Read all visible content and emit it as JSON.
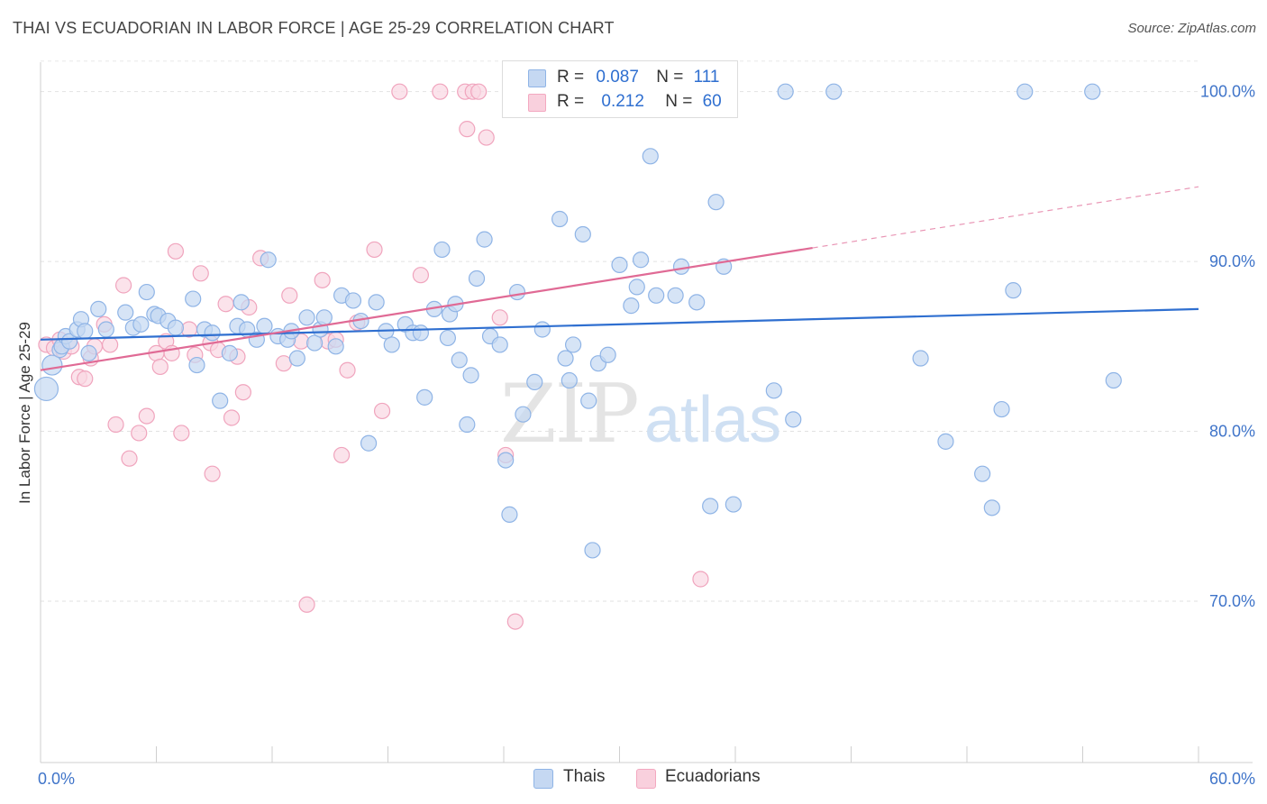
{
  "header": {
    "title": "THAI VS ECUADORIAN IN LABOR FORCE | AGE 25-29 CORRELATION CHART",
    "source": "Source: ZipAtlas.com"
  },
  "watermark": {
    "zip": "ZIP",
    "atlas": "atlas"
  },
  "legend": {
    "thais": {
      "r_label": "R =",
      "r_value": "0.087",
      "n_label": "N =",
      "n_value": "111"
    },
    "ecuadorians": {
      "r_label": "R =",
      "r_value": "0.212",
      "n_label": "N =",
      "n_value": "60"
    }
  },
  "bottom_legend": {
    "thais": "Thais",
    "ecuadorians": "Ecuadorians"
  },
  "chart_data": {
    "type": "scatter",
    "title": "THAI VS ECUADORIAN IN LABOR FORCE | AGE 25-29 CORRELATION CHART",
    "xlabel": "",
    "ylabel": "In Labor Force | Age 25-29",
    "xlim": [
      0,
      60
    ],
    "ylim": [
      60.5,
      102
    ],
    "x_tick_labels": [
      "0.0%",
      "60.0%"
    ],
    "y_ticks": [
      70,
      80,
      90,
      100
    ],
    "y_tick_labels": [
      "70.0%",
      "80.0%",
      "90.0%",
      "100.0%"
    ],
    "grid": true,
    "legend_position": "top-center",
    "colors": {
      "thais": "#8fb4e6",
      "thais_line": "#2f6fd0",
      "ecuadorians": "#f3a8c0",
      "ecuadorians_line": "#e06a95",
      "tick_label": "#3f74c9"
    },
    "series": [
      {
        "name": "Thais",
        "trend": {
          "x": [
            0,
            60
          ],
          "y": [
            85.4,
            87.2
          ]
        },
        "points": [
          [
            0.3,
            82.5
          ],
          [
            0.6,
            83.9
          ],
          [
            1.0,
            84.8
          ],
          [
            1.1,
            85.0
          ],
          [
            1.3,
            85.6
          ],
          [
            1.5,
            85.3
          ],
          [
            1.9,
            86.0
          ],
          [
            2.1,
            86.6
          ],
          [
            2.3,
            85.9
          ],
          [
            2.5,
            84.6
          ],
          [
            3.0,
            87.2
          ],
          [
            3.4,
            86.0
          ],
          [
            4.4,
            87.0
          ],
          [
            4.8,
            86.1
          ],
          [
            5.2,
            86.3
          ],
          [
            5.5,
            88.2
          ],
          [
            5.9,
            86.9
          ],
          [
            6.1,
            86.8
          ],
          [
            6.6,
            86.5
          ],
          [
            7.0,
            86.1
          ],
          [
            7.9,
            87.8
          ],
          [
            8.1,
            83.9
          ],
          [
            8.5,
            86.0
          ],
          [
            8.9,
            85.8
          ],
          [
            9.3,
            81.8
          ],
          [
            9.8,
            84.6
          ],
          [
            10.2,
            86.2
          ],
          [
            10.4,
            87.6
          ],
          [
            10.7,
            86.0
          ],
          [
            11.2,
            85.4
          ],
          [
            11.6,
            86.2
          ],
          [
            11.8,
            90.1
          ],
          [
            12.3,
            85.6
          ],
          [
            12.8,
            85.4
          ],
          [
            13.0,
            85.9
          ],
          [
            13.3,
            84.3
          ],
          [
            13.8,
            86.7
          ],
          [
            14.2,
            85.2
          ],
          [
            14.5,
            86.0
          ],
          [
            14.7,
            86.7
          ],
          [
            15.3,
            85.0
          ],
          [
            15.6,
            88.0
          ],
          [
            16.2,
            87.7
          ],
          [
            16.6,
            86.5
          ],
          [
            17.0,
            79.3
          ],
          [
            17.4,
            87.6
          ],
          [
            17.9,
            85.9
          ],
          [
            18.2,
            85.1
          ],
          [
            18.9,
            86.3
          ],
          [
            19.3,
            85.8
          ],
          [
            19.7,
            85.8
          ],
          [
            19.9,
            82.0
          ],
          [
            20.4,
            87.2
          ],
          [
            20.8,
            90.7
          ],
          [
            21.1,
            85.5
          ],
          [
            21.2,
            86.9
          ],
          [
            21.5,
            87.5
          ],
          [
            21.7,
            84.2
          ],
          [
            22.1,
            80.4
          ],
          [
            22.3,
            83.3
          ],
          [
            22.6,
            89.0
          ],
          [
            23.0,
            91.3
          ],
          [
            23.3,
            85.6
          ],
          [
            23.8,
            85.1
          ],
          [
            24.1,
            78.3
          ],
          [
            24.3,
            75.1
          ],
          [
            24.7,
            88.2
          ],
          [
            25.0,
            81.0
          ],
          [
            25.1,
            100.1
          ],
          [
            25.2,
            100.0
          ],
          [
            25.6,
            82.9
          ],
          [
            26.0,
            86.0
          ],
          [
            26.9,
            92.5
          ],
          [
            27.2,
            84.3
          ],
          [
            27.4,
            83.0
          ],
          [
            27.6,
            85.1
          ],
          [
            28.1,
            91.6
          ],
          [
            28.4,
            81.8
          ],
          [
            28.6,
            73.0
          ],
          [
            28.9,
            84.0
          ],
          [
            29.4,
            84.5
          ],
          [
            30.0,
            89.8
          ],
          [
            30.6,
            87.4
          ],
          [
            30.9,
            88.5
          ],
          [
            31.1,
            90.1
          ],
          [
            31.6,
            96.2
          ],
          [
            31.9,
            88.0
          ],
          [
            32.9,
            88.0
          ],
          [
            33.2,
            89.7
          ],
          [
            34.0,
            87.6
          ],
          [
            34.7,
            75.6
          ],
          [
            35.0,
            93.5
          ],
          [
            35.4,
            89.7
          ],
          [
            35.9,
            75.7
          ],
          [
            38.0,
            82.4
          ],
          [
            38.6,
            100.0
          ],
          [
            39.0,
            80.7
          ],
          [
            41.1,
            100.0
          ],
          [
            45.6,
            84.3
          ],
          [
            46.9,
            79.4
          ],
          [
            48.8,
            77.5
          ],
          [
            49.3,
            75.5
          ],
          [
            49.8,
            81.3
          ],
          [
            50.4,
            88.3
          ],
          [
            51.0,
            100.0
          ],
          [
            54.5,
            100.0
          ],
          [
            55.6,
            83.0
          ]
        ]
      },
      {
        "name": "Ecuadorians",
        "trend": {
          "x": [
            0,
            40
          ],
          "y": [
            83.6,
            90.8
          ]
        },
        "trend_extension": {
          "x": [
            40,
            60
          ],
          "y": [
            90.8,
            94.4
          ]
        },
        "points": [
          [
            0.3,
            85.1
          ],
          [
            0.7,
            84.9
          ],
          [
            1.0,
            85.4
          ],
          [
            1.2,
            84.7
          ],
          [
            1.6,
            85.0
          ],
          [
            2.0,
            83.2
          ],
          [
            2.3,
            83.1
          ],
          [
            2.6,
            84.3
          ],
          [
            2.8,
            85.0
          ],
          [
            3.3,
            86.3
          ],
          [
            3.6,
            85.1
          ],
          [
            3.9,
            80.4
          ],
          [
            4.3,
            88.6
          ],
          [
            4.6,
            78.4
          ],
          [
            5.1,
            79.9
          ],
          [
            5.5,
            80.9
          ],
          [
            6.0,
            84.6
          ],
          [
            6.2,
            83.8
          ],
          [
            6.5,
            85.3
          ],
          [
            6.8,
            84.6
          ],
          [
            7.0,
            90.6
          ],
          [
            7.3,
            79.9
          ],
          [
            7.7,
            86.0
          ],
          [
            8.0,
            84.5
          ],
          [
            8.3,
            89.3
          ],
          [
            8.8,
            85.2
          ],
          [
            8.9,
            77.5
          ],
          [
            9.2,
            84.8
          ],
          [
            9.6,
            87.5
          ],
          [
            9.9,
            80.8
          ],
          [
            10.2,
            84.4
          ],
          [
            10.5,
            82.3
          ],
          [
            10.8,
            87.3
          ],
          [
            11.4,
            90.2
          ],
          [
            12.6,
            84.0
          ],
          [
            12.9,
            88.0
          ],
          [
            13.5,
            85.3
          ],
          [
            13.8,
            69.8
          ],
          [
            14.6,
            88.9
          ],
          [
            14.9,
            85.3
          ],
          [
            15.3,
            85.4
          ],
          [
            15.6,
            78.6
          ],
          [
            15.9,
            83.6
          ],
          [
            16.4,
            86.4
          ],
          [
            17.3,
            90.7
          ],
          [
            17.7,
            81.2
          ],
          [
            18.6,
            100.0
          ],
          [
            19.7,
            89.2
          ],
          [
            20.7,
            100.0
          ],
          [
            22.0,
            100.0
          ],
          [
            22.1,
            97.8
          ],
          [
            22.4,
            100.0
          ],
          [
            22.7,
            100.0
          ],
          [
            23.1,
            97.3
          ],
          [
            23.8,
            86.7
          ],
          [
            24.1,
            78.6
          ],
          [
            24.6,
            68.8
          ],
          [
            34.2,
            71.3
          ]
        ]
      }
    ]
  }
}
